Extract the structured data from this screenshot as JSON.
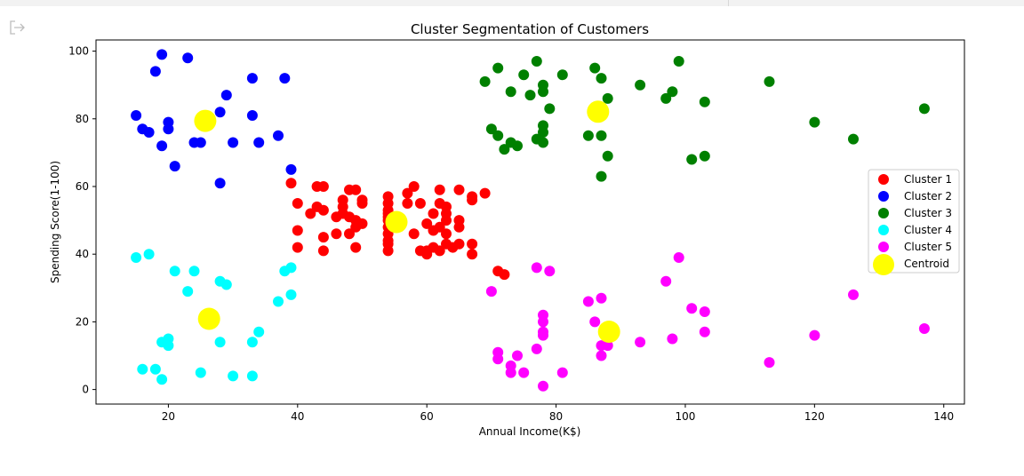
{
  "output_icon": "output-arrow-icon",
  "chart_data": {
    "type": "scatter",
    "title": "Cluster Segmentation of Customers",
    "xlabel": "Annual Income(K$)",
    "ylabel": "Spending Score(1-100)",
    "xlim": [
      8.8,
      143.2
    ],
    "ylim": [
      -4.3,
      103.3
    ],
    "xticks": [
      20,
      40,
      60,
      80,
      100,
      120,
      140
    ],
    "yticks": [
      0,
      20,
      40,
      60,
      80,
      100
    ],
    "grid": false,
    "legend_position": "center-right",
    "series": [
      {
        "name": "Cluster 1",
        "color": "#ff0000",
        "points": [
          [
            39,
            61
          ],
          [
            40,
            55
          ],
          [
            40,
            47
          ],
          [
            40,
            42
          ],
          [
            42,
            52
          ],
          [
            43,
            60
          ],
          [
            43,
            54
          ],
          [
            44,
            60
          ],
          [
            44,
            53
          ],
          [
            44,
            45
          ],
          [
            44,
            41
          ],
          [
            46,
            51
          ],
          [
            46,
            46
          ],
          [
            47,
            56
          ],
          [
            47,
            54
          ],
          [
            47,
            52
          ],
          [
            48,
            59
          ],
          [
            48,
            51
          ],
          [
            48,
            46
          ],
          [
            49,
            59
          ],
          [
            49,
            50
          ],
          [
            49,
            48
          ],
          [
            49,
            42
          ],
          [
            50,
            55
          ],
          [
            50,
            56
          ],
          [
            50,
            49
          ],
          [
            54,
            57
          ],
          [
            54,
            55
          ],
          [
            54,
            53
          ],
          [
            54,
            52
          ],
          [
            54,
            51
          ],
          [
            54,
            50
          ],
          [
            54,
            48
          ],
          [
            54,
            46
          ],
          [
            54,
            44
          ],
          [
            54,
            43
          ],
          [
            54,
            41
          ],
          [
            57,
            58
          ],
          [
            57,
            55
          ],
          [
            58,
            60
          ],
          [
            58,
            46
          ],
          [
            59,
            55
          ],
          [
            59,
            41
          ],
          [
            60,
            49
          ],
          [
            60,
            41
          ],
          [
            60,
            40
          ],
          [
            61,
            52
          ],
          [
            61,
            47
          ],
          [
            61,
            42
          ],
          [
            62,
            59
          ],
          [
            62,
            55
          ],
          [
            62,
            48
          ],
          [
            62,
            41
          ],
          [
            63,
            54
          ],
          [
            63,
            52
          ],
          [
            63,
            50
          ],
          [
            63,
            46
          ],
          [
            63,
            43
          ],
          [
            64,
            42
          ],
          [
            65,
            59
          ],
          [
            65,
            50
          ],
          [
            65,
            48
          ],
          [
            65,
            43
          ],
          [
            67,
            56
          ],
          [
            67,
            57
          ],
          [
            67,
            43
          ],
          [
            67,
            40
          ],
          [
            69,
            58
          ],
          [
            71,
            35
          ],
          [
            72,
            34
          ]
        ]
      },
      {
        "name": "Cluster 2",
        "color": "#0000ff",
        "points": [
          [
            15,
            81
          ],
          [
            16,
            77
          ],
          [
            17,
            76
          ],
          [
            18,
            94
          ],
          [
            19,
            99
          ],
          [
            19,
            72
          ],
          [
            20,
            79
          ],
          [
            20,
            77
          ],
          [
            21,
            66
          ],
          [
            23,
            98
          ],
          [
            24,
            73
          ],
          [
            25,
            73
          ],
          [
            28,
            82
          ],
          [
            28,
            61
          ],
          [
            29,
            87
          ],
          [
            30,
            73
          ],
          [
            33,
            92
          ],
          [
            33,
            81
          ],
          [
            34,
            73
          ],
          [
            37,
            75
          ],
          [
            38,
            92
          ],
          [
            39,
            65
          ]
        ]
      },
      {
        "name": "Cluster 3",
        "color": "#008000",
        "points": [
          [
            69,
            91
          ],
          [
            70,
            77
          ],
          [
            71,
            95
          ],
          [
            71,
            75
          ],
          [
            72,
            71
          ],
          [
            73,
            88
          ],
          [
            73,
            73
          ],
          [
            74,
            72
          ],
          [
            75,
            93
          ],
          [
            76,
            87
          ],
          [
            77,
            97
          ],
          [
            77,
            74
          ],
          [
            78,
            90
          ],
          [
            78,
            88
          ],
          [
            78,
            78
          ],
          [
            78,
            76
          ],
          [
            78,
            73
          ],
          [
            79,
            83
          ],
          [
            81,
            93
          ],
          [
            85,
            75
          ],
          [
            86,
            95
          ],
          [
            87,
            92
          ],
          [
            87,
            75
          ],
          [
            87,
            63
          ],
          [
            88,
            86
          ],
          [
            88,
            69
          ],
          [
            93,
            90
          ],
          [
            97,
            86
          ],
          [
            98,
            88
          ],
          [
            99,
            97
          ],
          [
            101,
            68
          ],
          [
            103,
            85
          ],
          [
            103,
            69
          ],
          [
            113,
            91
          ],
          [
            120,
            79
          ],
          [
            126,
            74
          ],
          [
            137,
            83
          ]
        ]
      },
      {
        "name": "Cluster 4",
        "color": "#00ffff",
        "points": [
          [
            15,
            39
          ],
          [
            16,
            6
          ],
          [
            17,
            40
          ],
          [
            18,
            6
          ],
          [
            19,
            3
          ],
          [
            19,
            14
          ],
          [
            20,
            15
          ],
          [
            20,
            13
          ],
          [
            21,
            35
          ],
          [
            23,
            29
          ],
          [
            24,
            35
          ],
          [
            25,
            5
          ],
          [
            28,
            32
          ],
          [
            28,
            14
          ],
          [
            29,
            31
          ],
          [
            30,
            4
          ],
          [
            33,
            4
          ],
          [
            33,
            14
          ],
          [
            34,
            17
          ],
          [
            37,
            26
          ],
          [
            38,
            35
          ],
          [
            39,
            36
          ],
          [
            39,
            28
          ]
        ]
      },
      {
        "name": "Cluster 5",
        "color": "#ff00ff",
        "points": [
          [
            70,
            29
          ],
          [
            71,
            11
          ],
          [
            71,
            9
          ],
          [
            73,
            5
          ],
          [
            73,
            7
          ],
          [
            74,
            10
          ],
          [
            75,
            5
          ],
          [
            77,
            12
          ],
          [
            77,
            36
          ],
          [
            78,
            22
          ],
          [
            78,
            20
          ],
          [
            78,
            17
          ],
          [
            78,
            16
          ],
          [
            78,
            1
          ],
          [
            79,
            35
          ],
          [
            81,
            5
          ],
          [
            85,
            26
          ],
          [
            86,
            20
          ],
          [
            87,
            27
          ],
          [
            87,
            13
          ],
          [
            87,
            10
          ],
          [
            88,
            13
          ],
          [
            88,
            15
          ],
          [
            93,
            14
          ],
          [
            97,
            32
          ],
          [
            98,
            15
          ],
          [
            99,
            39
          ],
          [
            101,
            24
          ],
          [
            103,
            17
          ],
          [
            103,
            23
          ],
          [
            113,
            8
          ],
          [
            120,
            16
          ],
          [
            126,
            28
          ],
          [
            137,
            18
          ]
        ]
      },
      {
        "name": "Centroid",
        "color": "#ffff00",
        "points": [
          [
            55.3,
            49.5
          ],
          [
            86.5,
            82.1
          ],
          [
            25.7,
            79.4
          ],
          [
            26.3,
            20.9
          ],
          [
            88.2,
            17.1
          ]
        ]
      }
    ]
  }
}
